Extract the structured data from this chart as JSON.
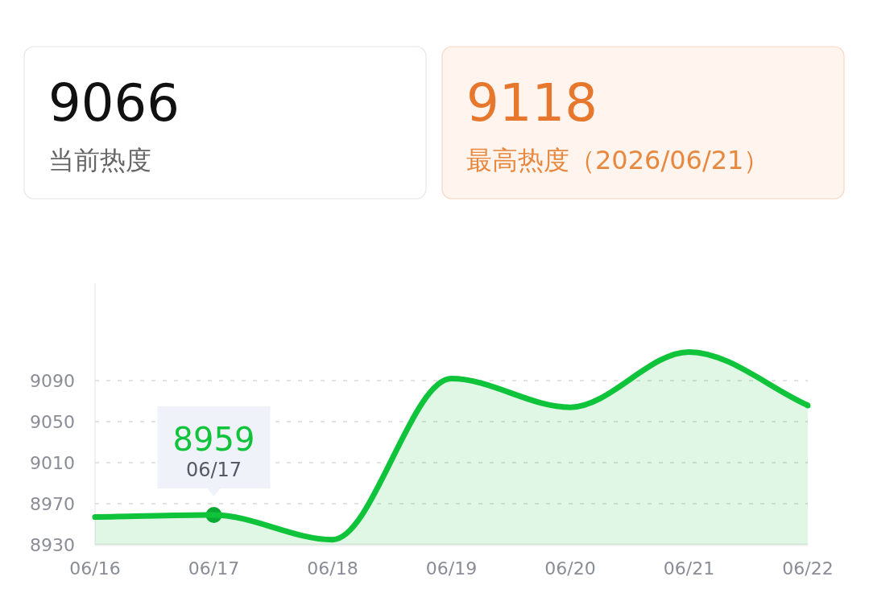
{
  "chart_data": [
    {
      "type": "other",
      "title": "9066",
      "subtitle": "当前热度"
    },
    {
      "type": "other",
      "title": "9118",
      "subtitle": "最高热度（2026/06/21）"
    },
    {
      "type": "area",
      "categories": [
        "06/16",
        "06/17",
        "06/18",
        "06/19",
        "06/20",
        "06/21",
        "06/22"
      ],
      "series": [
        {
          "color": "#0fc43a",
          "values": [
            8957,
            8959,
            8935,
            9092,
            9064,
            9118,
            9066
          ],
          "value_labels": [
            null,
            "8959",
            null,
            null,
            null,
            null,
            null
          ]
        }
      ],
      "ylim": [
        8930,
        9185
      ],
      "yticks": [
        8930,
        8970,
        9010,
        9050,
        9090
      ],
      "grid": "y",
      "line_style": "solid",
      "annotations": [
        "06/17"
      ]
    }
  ]
}
